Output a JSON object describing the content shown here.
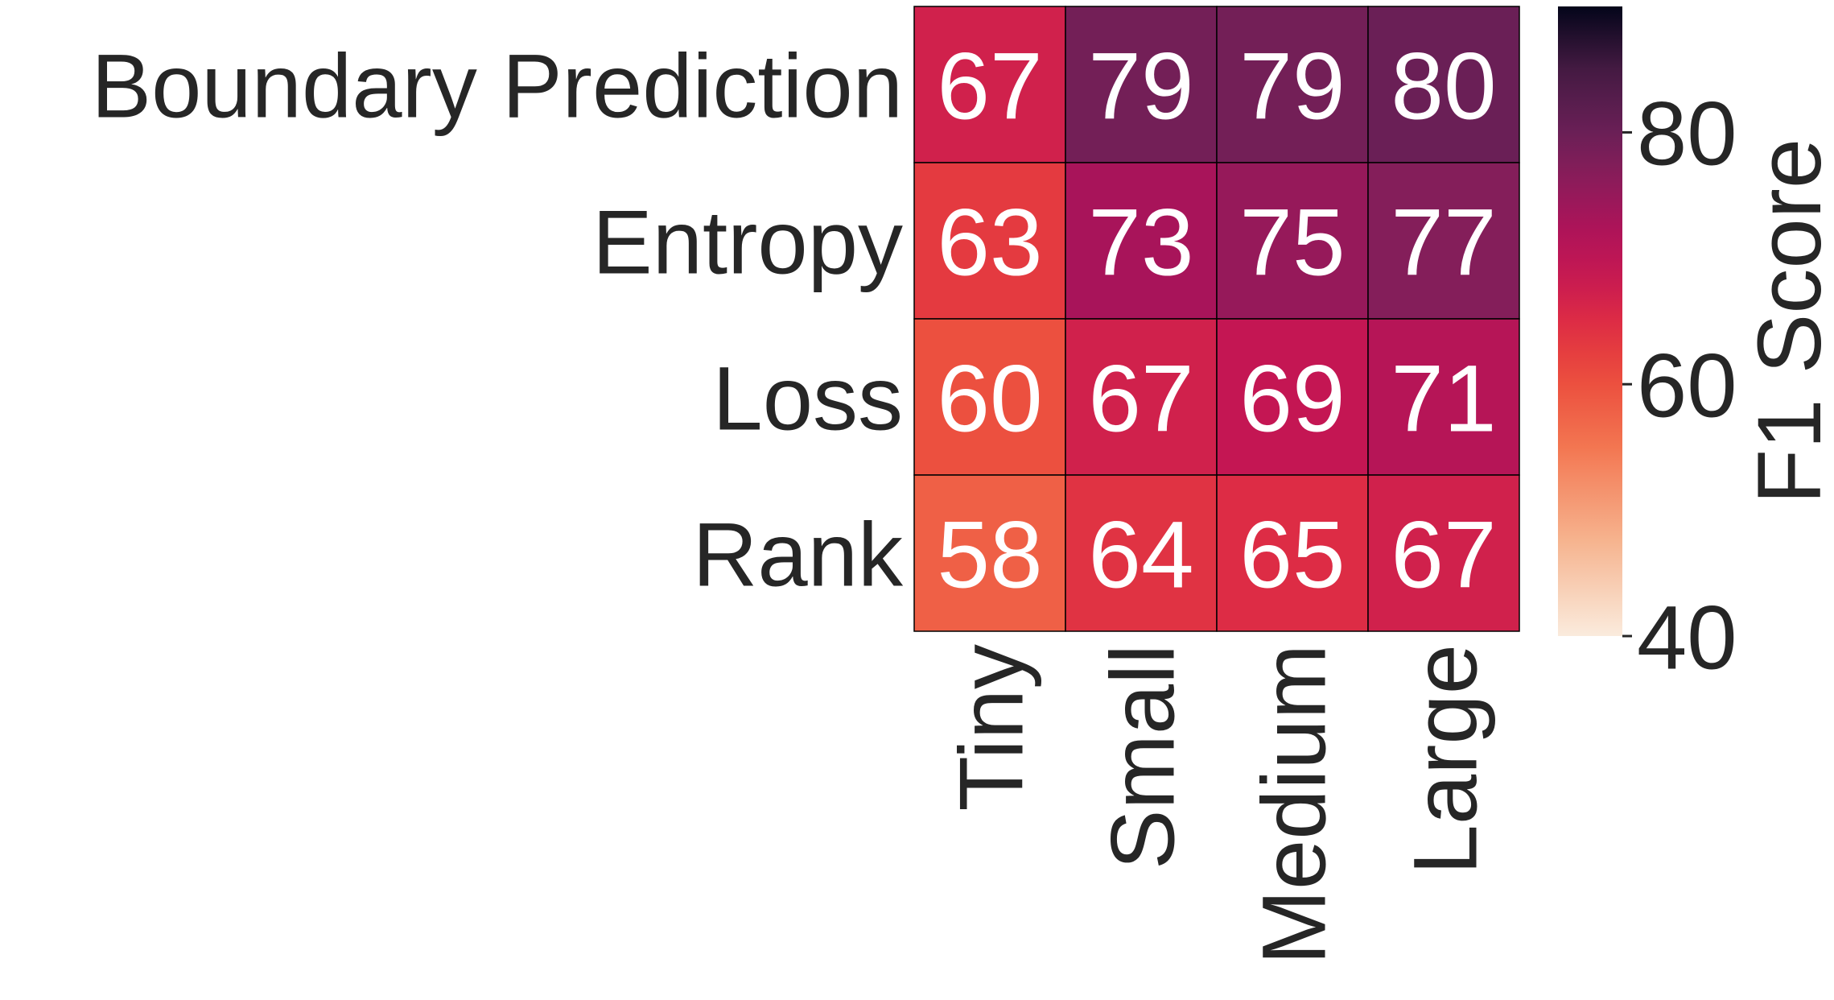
{
  "chart_data": {
    "type": "heatmap",
    "title": "",
    "xlabel": "",
    "ylabel": "",
    "x_categories": [
      "Tiny",
      "Small",
      "Medium",
      "Large"
    ],
    "y_categories": [
      "Boundary Prediction",
      "Entropy",
      "Loss",
      "Rank"
    ],
    "values": [
      [
        67,
        79,
        79,
        80
      ],
      [
        63,
        73,
        75,
        77
      ],
      [
        60,
        67,
        69,
        71
      ],
      [
        58,
        64,
        65,
        67
      ]
    ],
    "annotations": true,
    "colorbar": {
      "label": "F1 Score",
      "range": [
        40,
        90
      ],
      "ticks": [
        40,
        60,
        80
      ],
      "colormap": "rocket_r"
    },
    "colors": {
      "annotation_text": "#ffffff",
      "label_text": "#262626",
      "cell_border": "#000000"
    }
  }
}
